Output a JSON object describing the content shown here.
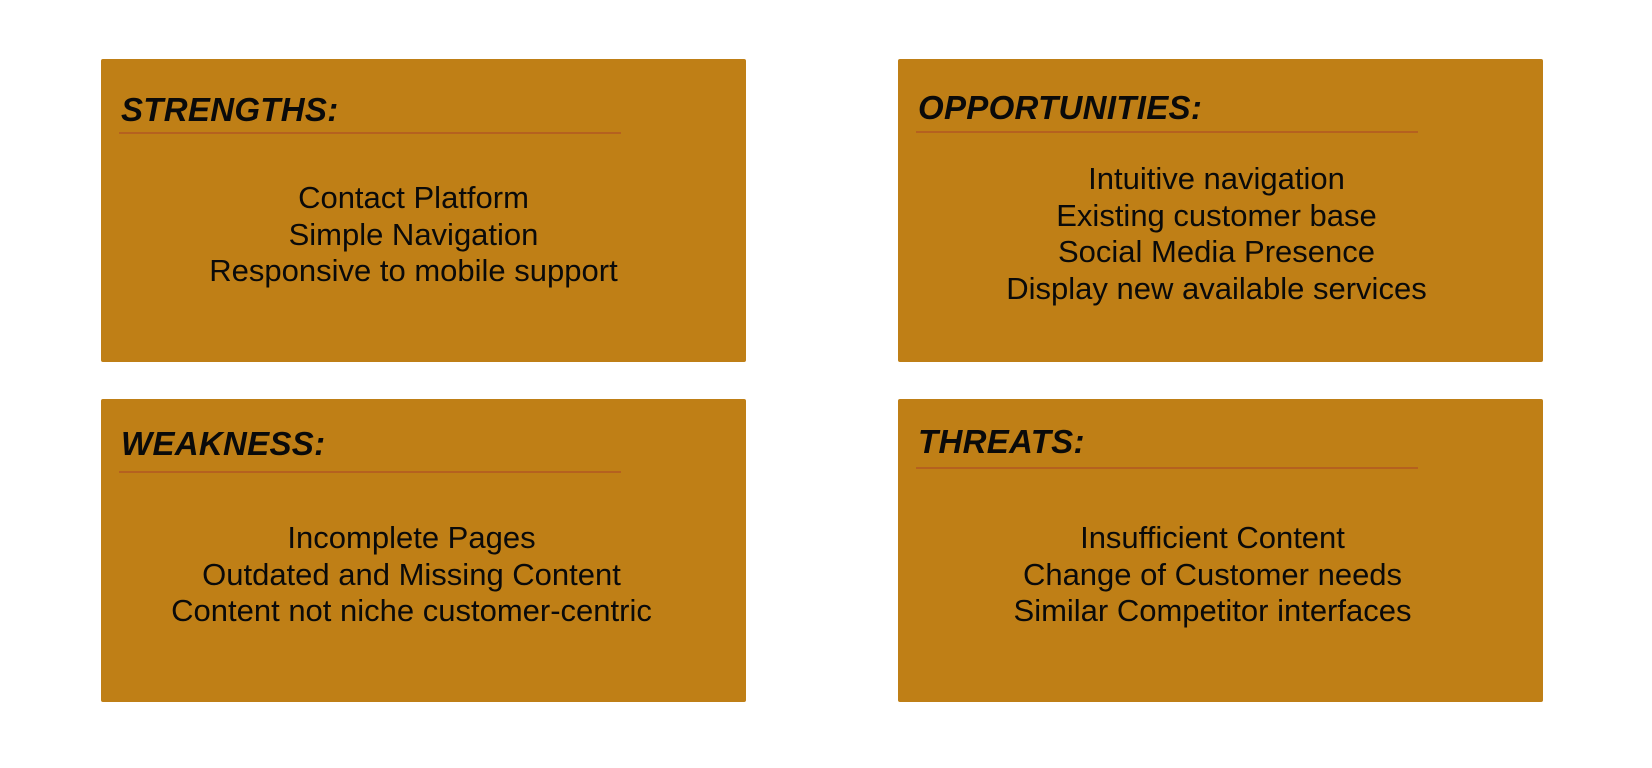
{
  "theme": {
    "box_color": "#bf7f16",
    "rule_color": "#b5611f",
    "text_color": "#0a0a0a",
    "background": "#ffffff"
  },
  "strengths": {
    "title": "STRENGTHS:",
    "items": [
      "Contact Platform",
      "Simple Navigation",
      "Responsive to mobile support"
    ]
  },
  "opportunities": {
    "title": "OPPORTUNITIES:",
    "items": [
      "Intuitive navigation",
      "Existing customer base",
      "Social Media Presence",
      "Display new available services"
    ]
  },
  "weakness": {
    "title": "WEAKNESS:",
    "items": [
      "Incomplete Pages",
      "Outdated and Missing Content",
      "Content not niche customer-centric"
    ]
  },
  "threats": {
    "title": "THREATS:",
    "items": [
      "Insufficient Content",
      "Change of Customer needs",
      "Similar Competitor interfaces"
    ]
  }
}
